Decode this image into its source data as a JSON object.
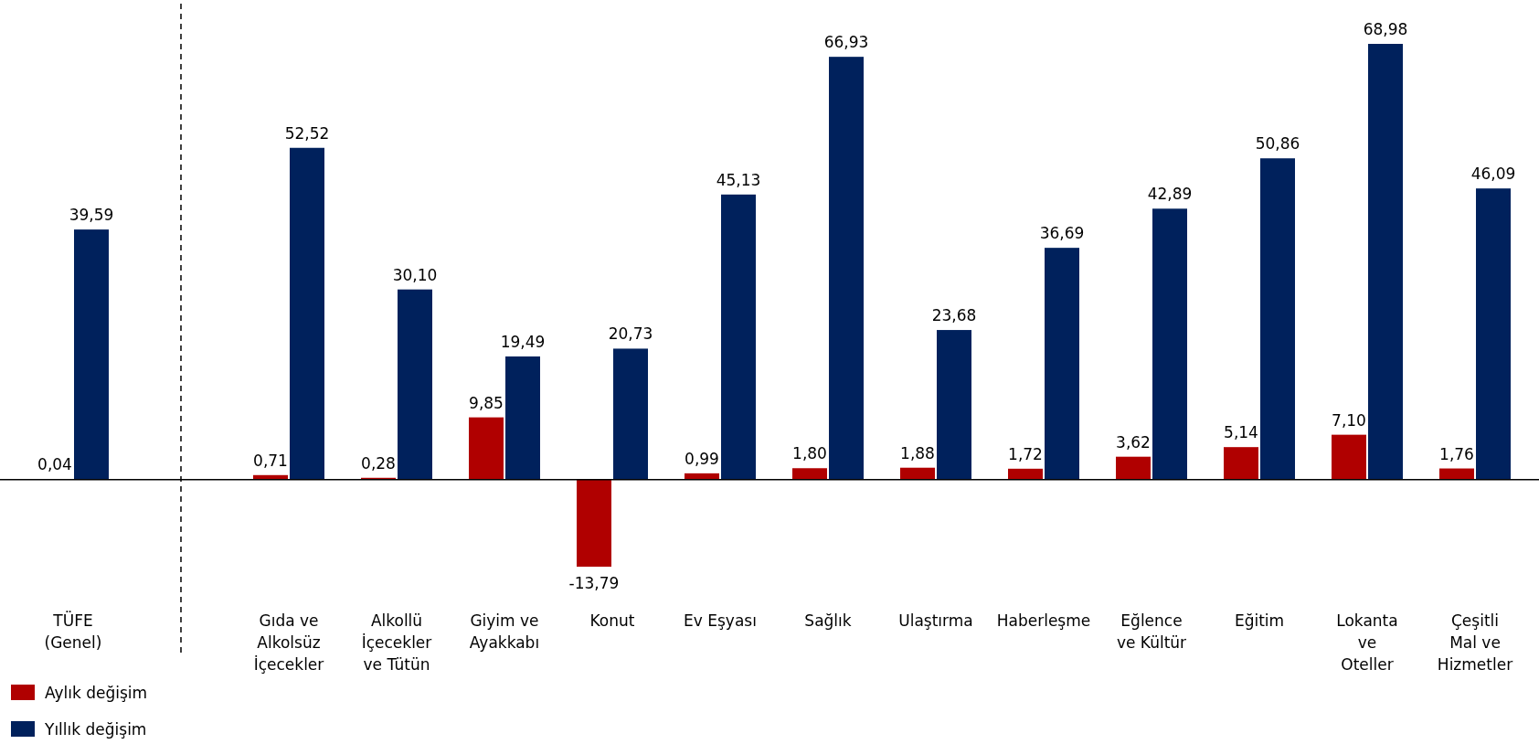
{
  "chart_data": {
    "type": "bar",
    "categories": [
      "TÜFE (Genel)",
      null,
      "Gıda ve Alkolsüz İçecekler",
      "Alkollü İçecekler ve Tütün",
      "Giyim ve Ayakkabı",
      "Konut",
      "Ev Eşyası",
      "Sağlık",
      "Ulaştırma",
      "Haberleşme",
      "Eğlence ve Kültür",
      "Eğitim",
      "Lokanta ve Oteller",
      "Çeşitli Mal ve Hizmetler"
    ],
    "series": [
      {
        "name": "Aylık değişim",
        "color": "#b00000",
        "values": [
          0.04,
          null,
          0.71,
          0.28,
          9.85,
          -13.79,
          0.99,
          1.8,
          1.88,
          1.72,
          3.62,
          5.14,
          7.1,
          1.76
        ],
        "value_labels": [
          "0,04",
          null,
          "0,71",
          "0,28",
          "9,85",
          "-13,79",
          "0,99",
          "1,80",
          "1,88",
          "1,72",
          "3,62",
          "5,14",
          "7,10",
          "1,76"
        ]
      },
      {
        "name": "Yıllık değişim",
        "color": "#00215c",
        "values": [
          39.59,
          null,
          52.52,
          30.1,
          19.49,
          20.73,
          45.13,
          66.93,
          23.68,
          36.69,
          42.89,
          50.86,
          68.98,
          46.09
        ],
        "value_labels": [
          "39,59",
          null,
          "52,52",
          "30,10",
          "19,49",
          "20,73",
          "45,13",
          "66,93",
          "23,68",
          "36,69",
          "42,89",
          "50,86",
          "68,98",
          "46,09"
        ]
      }
    ],
    "legend": "bottom left"
  }
}
